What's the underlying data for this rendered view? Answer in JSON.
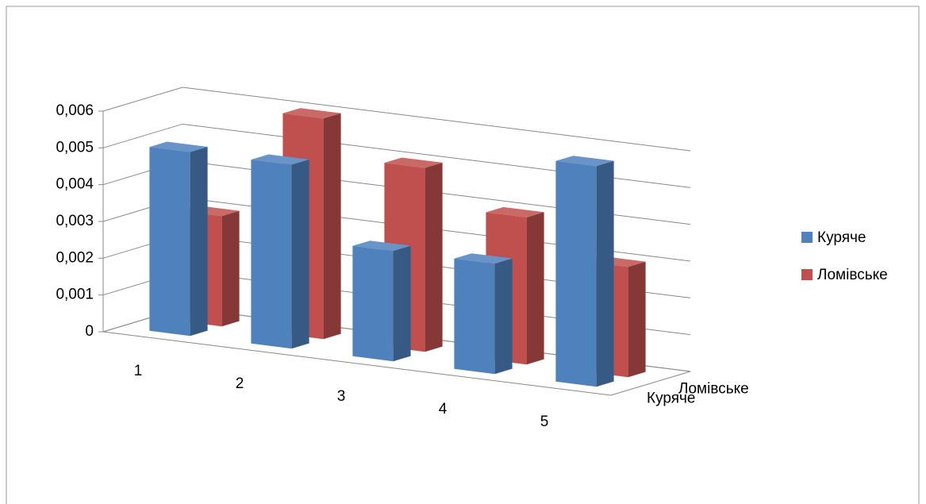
{
  "chart_data": {
    "type": "bar3d",
    "categories": [
      "1",
      "2",
      "3",
      "4",
      "5"
    ],
    "series": [
      {
        "name": "Куряче",
        "color": "#4f81bd",
        "values": [
          0.005,
          0.005,
          0.003,
          0.003,
          0.006
        ]
      },
      {
        "name": "Ломівське",
        "color": "#c0504d",
        "values": [
          0.003,
          0.006,
          0.005,
          0.004,
          0.003
        ]
      }
    ],
    "ylim": [
      0,
      0.006
    ],
    "yticks": [
      0,
      {
        "value": 0.001,
        "label": "0,001"
      },
      {
        "value": 0.002,
        "label": "0,002"
      },
      {
        "value": 0.003,
        "label": "0,003"
      },
      {
        "value": 0.004,
        "label": "0,004"
      },
      {
        "value": 0.005,
        "label": "0,005"
      },
      {
        "value": 0.006,
        "label": "0,006"
      }
    ],
    "grid": true,
    "legend": "right"
  }
}
